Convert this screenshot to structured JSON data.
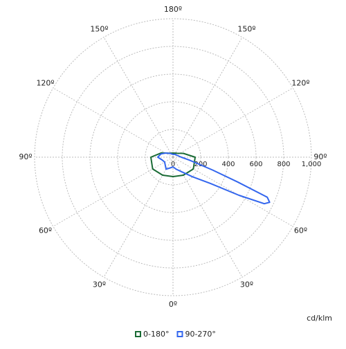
{
  "chart_data": {
    "type": "polar",
    "unit": "cd/klm",
    "rlim": [
      0,
      1000
    ],
    "rticks": [
      0,
      200,
      400,
      600,
      800,
      {
        "value": 1000,
        "label": "1,000"
      }
    ],
    "angle_ticks": [
      {
        "value": 0,
        "label": "0º"
      },
      {
        "value": 30,
        "label": "30º"
      },
      {
        "value": 60,
        "label": "60º"
      },
      {
        "value": 90,
        "label": "90º"
      },
      {
        "value": 120,
        "label": "120º"
      },
      {
        "value": 150,
        "label": "150º"
      },
      {
        "value": 180,
        "label": "180º"
      },
      {
        "value": 210,
        "label": "150º"
      },
      {
        "value": 240,
        "label": "120º"
      },
      {
        "value": 270,
        "label": "90º"
      },
      {
        "value": 300,
        "label": "60º"
      },
      {
        "value": 330,
        "label": "30º"
      }
    ],
    "grid": true,
    "series": [
      {
        "name": "0-180°",
        "color": "#1a6b35",
        "x": [
          0,
          30,
          60,
          90,
          110,
          135,
          180,
          225,
          250,
          270,
          300,
          330
        ],
        "values": [
          140,
          150,
          170,
          160,
          80,
          40,
          30,
          40,
          90,
          160,
          170,
          150
        ]
      },
      {
        "name": "90-270°",
        "color": "#3366ee",
        "x": [
          0,
          15,
          30,
          45,
          55,
          60,
          63,
          65,
          67,
          69,
          72,
          80,
          90,
          120,
          150,
          180,
          210,
          240,
          255,
          270,
          285,
          300,
          330,
          345
        ],
        "values": [
          70,
          90,
          120,
          200,
          330,
          550,
          740,
          770,
          740,
          500,
          300,
          120,
          60,
          30,
          25,
          20,
          30,
          60,
          90,
          110,
          80,
          70,
          100,
          80
        ]
      }
    ]
  }
}
